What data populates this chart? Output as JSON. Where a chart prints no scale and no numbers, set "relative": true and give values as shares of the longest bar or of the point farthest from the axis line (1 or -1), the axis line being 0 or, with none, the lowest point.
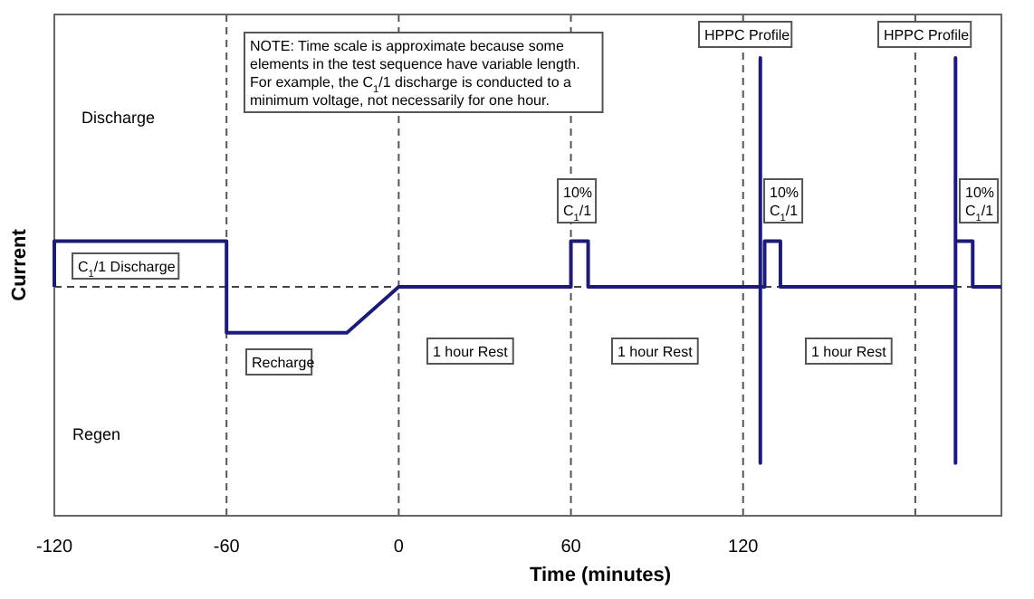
{
  "chart_data": {
    "type": "line",
    "relative": true,
    "xlabel": "Time (minutes)",
    "ylabel": "Current",
    "xlim": [
      -120,
      210
    ],
    "xticks": [
      -120,
      -60,
      0,
      60,
      120,
      {
        "value": 180,
        "label": null
      }
    ],
    "grid": "x",
    "series": [
      {
        "color": "#1c1c78",
        "x": [
          -120,
          -120,
          -60,
          -60,
          -18,
          0,
          60,
          60,
          66,
          66,
          126,
          126,
          126,
          126,
          127.5,
          127.5,
          133,
          133,
          194,
          194,
          194,
          194,
          200,
          200,
          210
        ],
        "values": [
          0,
          0.2,
          0.2,
          -0.2,
          -0.2,
          0,
          0,
          0.2,
          0.2,
          0,
          0,
          1,
          -0.77,
          0,
          0,
          0.2,
          0.2,
          0,
          0,
          1,
          -0.77,
          0.2,
          0.2,
          0,
          0
        ]
      }
    ],
    "ref_lines": [
      {
        "axis": "y",
        "value": 0,
        "line_style": "dashed",
        "color": "#444444"
      }
    ],
    "annotations": [
      "NOTE: Time scale is approximate because some\nelements in the test sequence have variable length.\nFor example, the C$_{1}$/1 discharge is conducted to a\nminimum voltage, not necessarily for one hour.",
      "Discharge",
      "Regen",
      "C$_{1}$/1 Discharge",
      "Recharge",
      "1 hour Rest",
      "1 hour Rest",
      "1 hour Rest",
      "10%\nC$_{1}$/1",
      "10%\nC$_{1}$/1",
      "10%\nC$_{1}$/1",
      "HPPC Profile",
      "HPPC Profile"
    ]
  }
}
